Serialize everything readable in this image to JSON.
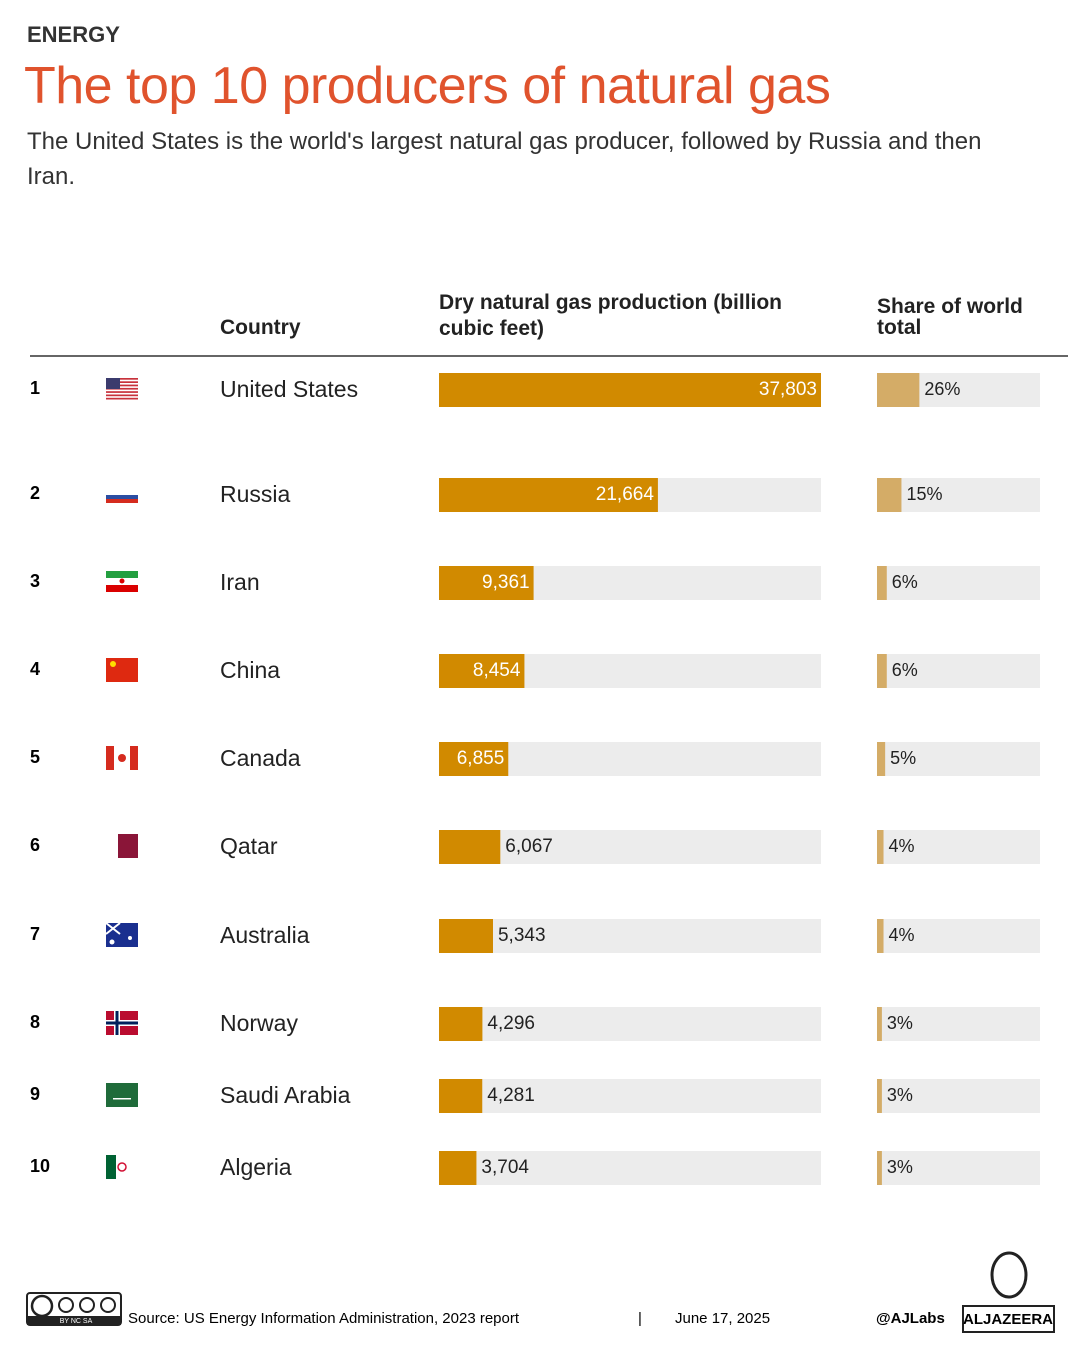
{
  "chart_data": {
    "type": "bar",
    "section": "ENERGY",
    "title": "The top 10 producers of natural gas",
    "subtitle": "The United States is the world's largest natural gas producer, followed by Russia and then Iran.",
    "category_label": "Country",
    "ranks": [
      1,
      2,
      3,
      4,
      5,
      6,
      7,
      8,
      9,
      10
    ],
    "categories": [
      "United States",
      "Russia",
      "Iran",
      "China",
      "Canada",
      "Qatar",
      "Australia",
      "Norway",
      "Saudi Arabia",
      "Algeria"
    ],
    "series": [
      {
        "name": "Dry natural gas production (billion cubic feet)",
        "color": "#d18a00",
        "track_color": "#ececec",
        "xlim": [
          0,
          37803
        ],
        "values": [
          37803,
          21664,
          9361,
          8454,
          6855,
          6067,
          5343,
          4296,
          4281,
          3704
        ],
        "value_labels": [
          "37,803",
          "21,664",
          "9,361",
          "8,454",
          "6,855",
          "6,067",
          "5,343",
          "4,296",
          "4,281",
          "3,704"
        ]
      },
      {
        "name": "Share of world total",
        "color": "#d4ac67",
        "track_color": "#ececec",
        "xlim": [
          0,
          100
        ],
        "values": [
          26,
          15,
          6,
          6,
          5,
          4,
          4,
          3,
          3,
          3
        ],
        "value_labels": [
          "26%",
          "15%",
          "6%",
          "6%",
          "5%",
          "4%",
          "4%",
          "3%",
          "3%",
          "3%"
        ]
      }
    ],
    "footer": {
      "source": "Source:  US Energy Information Administration, 2023 report",
      "separator": "|",
      "date": "June 17, 2025",
      "credit": "@AJLabs",
      "logo": "ALJAZEERA",
      "license": "BY NC SA"
    }
  }
}
